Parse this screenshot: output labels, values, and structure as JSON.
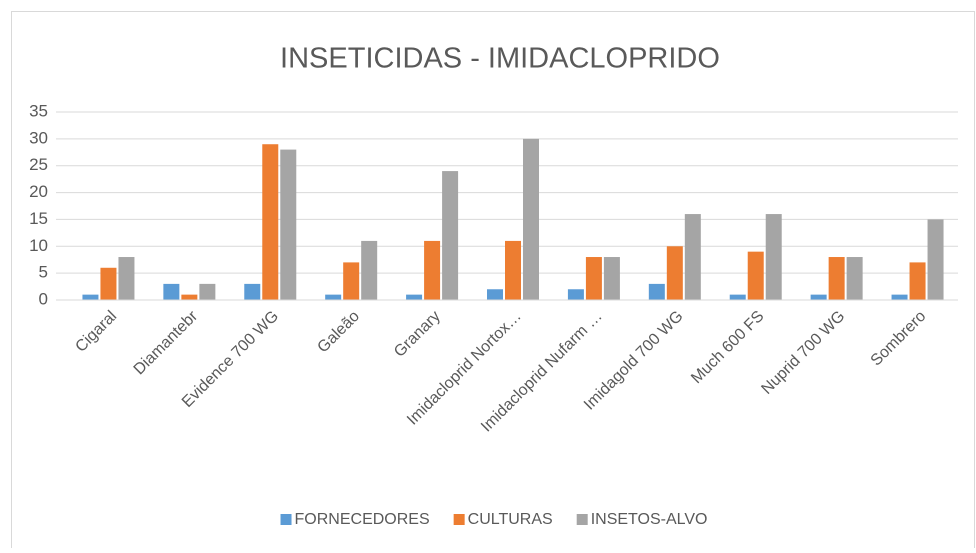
{
  "chart_data": {
    "type": "bar",
    "title": "INSETICIDAS - IMIDACLOPRIDO",
    "categories": [
      "Cigaral",
      "Diamantebr",
      "Evidence 700 WG",
      "Galeão",
      "Granary",
      "Imidacloprid Nortox…",
      "Imidacloprid Nufarm …",
      "Imidagold 700 WG",
      "Much 600 FS",
      "Nuprid 700 WG",
      "Sombrero"
    ],
    "series": [
      {
        "name": "FORNECEDORES",
        "color": "#5b9bd5",
        "values": [
          1,
          3,
          3,
          1,
          1,
          2,
          2,
          3,
          1,
          1,
          1
        ]
      },
      {
        "name": "CULTURAS",
        "color": "#ed7d31",
        "values": [
          6,
          1,
          29,
          7,
          11,
          11,
          8,
          10,
          9,
          8,
          7
        ]
      },
      {
        "name": "INSETOS-ALVO",
        "color": "#a5a5a5",
        "values": [
          8,
          3,
          28,
          11,
          24,
          30,
          8,
          16,
          16,
          8,
          15
        ]
      }
    ],
    "ylim": [
      0,
      35
    ],
    "yticks": [
      0,
      5,
      10,
      15,
      20,
      25,
      30,
      35
    ],
    "grid": true,
    "legend": "bottom"
  }
}
